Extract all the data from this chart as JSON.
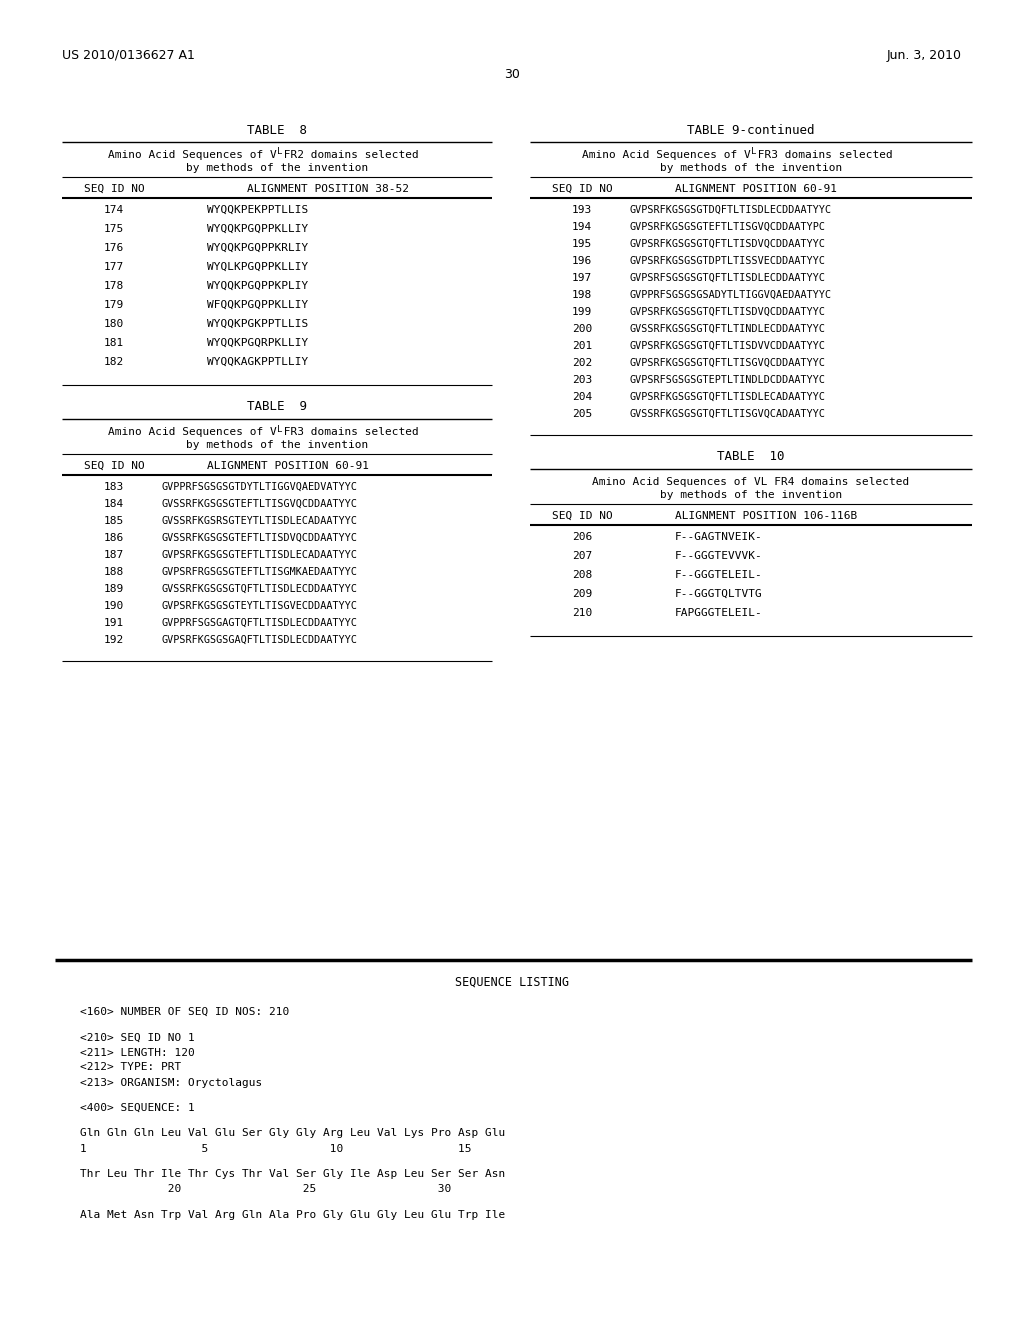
{
  "header_left": "US 2010/0136627 A1",
  "header_right": "Jun. 3, 2010",
  "page_number": "30",
  "background_color": "#ffffff",
  "text_color": "#000000",
  "table8_title": "TABLE  8",
  "table8_subtitle_line1": "Amino Acid Sequences of V",
  "table8_subtitle_sub": "L",
  "table8_subtitle_line1b": " FR2 domains selected",
  "table8_subtitle_line2": "by methods of the invention",
  "table8_col1": "SEQ ID NO",
  "table8_col2": "ALIGNMENT POSITION 38-52",
  "table8_rows": [
    [
      "174",
      "WYQQKPEKPPTLLIS"
    ],
    [
      "175",
      "WYQQKPGQPPKLLIY"
    ],
    [
      "176",
      "WYQQKPGQPPKRLIY"
    ],
    [
      "177",
      "WYQLKPGQPPKLLIY"
    ],
    [
      "178",
      "WYQQKPGQPPKPLIY"
    ],
    [
      "179",
      "WFQQKPGQPPKLLIY"
    ],
    [
      "180",
      "WYQQKPGKPPTLLIS"
    ],
    [
      "181",
      "WYQQKPGQRPKLLIY"
    ],
    [
      "182",
      "WYQQKAGKPPTLLIY"
    ]
  ],
  "table9_title": "TABLE  9",
  "table9_subtitle_line1": "Amino Acid Sequences of V",
  "table9_subtitle_sub": "L",
  "table9_subtitle_line1b": " FR3 domains selected",
  "table9_subtitle_line2": "by methods of the invention",
  "table9_col1": "SEQ ID NO",
  "table9_col2": "ALIGNMENT POSITION 60-91",
  "table9_rows_left": [
    [
      "183",
      "GVPPRFSGSGSGTDYTLTIGGVQAEDVATYYC"
    ],
    [
      "184",
      "GVSSRFKGSGSGTEFTLTISGVQCDDAATYYC"
    ],
    [
      "185",
      "GVSSRFKGSRSGTEYTLTISDLECADAATYYC"
    ],
    [
      "186",
      "GVSSRFKGSGSGTEFTLTISDVQCDDAATYYC"
    ],
    [
      "187",
      "GVPSRFKGSGSGTEFTLTISDLECADAATYYC"
    ],
    [
      "188",
      "GVPSRFRGSGSGTEFTLTISGMKAEDAATYYC"
    ],
    [
      "189",
      "GVSSRFKGSGSGTQFTLTISDLECDDAATYYC"
    ],
    [
      "190",
      "GVPSRFKGSGSGTEYTLTISGVECDDAATYYC"
    ],
    [
      "191",
      "GVPPRFSGSGAGTQFTLTISDLECDDAATYYC"
    ],
    [
      "192",
      "GVPSRFKGSGSGAQFTLTISDLECDDAATYYC"
    ]
  ],
  "table9cont_title": "TABLE 9-continued",
  "table9cont_subtitle_line1": "Amino Acid Sequences of V",
  "table9cont_subtitle_sub": "L",
  "table9cont_subtitle_line1b": " FR3 domains selected",
  "table9cont_subtitle_line2": "by methods of the invention",
  "table9cont_col1": "SEQ ID NO",
  "table9cont_col2": "ALIGNMENT POSITION 60-91",
  "table9cont_rows": [
    [
      "193",
      "GVPSRFKGSGSGTDQFTLTISDLECDDAATYYC"
    ],
    [
      "194",
      "GVPSRFKGSGSGTEFTLTISGVQCDDAATYPC"
    ],
    [
      "195",
      "GVPSRFKGSGSGTQFTLTISDVQCDDAATYYC"
    ],
    [
      "196",
      "GVPSRFKGSGSGTDPTLTISSVECDDAATYYC"
    ],
    [
      "197",
      "GVPSRFSGSGSGTQFTLTISDLECDDAATYYC"
    ],
    [
      "198",
      "GVPPRFSGSGSGSADYTLTIGGVQAEDAATYYC"
    ],
    [
      "199",
      "GVPSRFKGSGSGTQFTLTISDVQCDDAATYYC"
    ],
    [
      "200",
      "GVSSRFKGSGSGTQFTLTINDLECDDAATYYC"
    ],
    [
      "201",
      "GVPSRFKGSGSGTQFTLTISDVVCDDAATYYC"
    ],
    [
      "202",
      "GVPSRFKGSGSGTQFTLTISGVQCDDAATYYC"
    ],
    [
      "203",
      "GVPSRFSGSGSGTEPTLTINDLDCDDAATYYC"
    ],
    [
      "204",
      "GVPSRFKGSGSGTQFTLTISDLECADAATYYC"
    ],
    [
      "205",
      "GVSSRFKGSGSGTQFTLTISGVQCADAATYYC"
    ]
  ],
  "table10_title": "TABLE  10",
  "table10_subtitle_line1": "Amino Acid Sequences of VL FR4 domains selected",
  "table10_subtitle_line2": "by methods of the invention",
  "table10_col1": "SEQ ID NO",
  "table10_col2": "ALIGNMENT POSITION 106-116B",
  "table10_rows": [
    [
      "206",
      "F--GAGTNVEIK-"
    ],
    [
      "207",
      "F--GGGTEVVVK-"
    ],
    [
      "208",
      "F--GGGTELEIL-"
    ],
    [
      "209",
      "F--GGGTQLTVTG"
    ],
    [
      "210",
      "FAPGGGTELEIL-"
    ]
  ],
  "seq_listing_title": "SEQUENCE LISTING",
  "seq_listing_lines": [
    "<160> NUMBER OF SEQ ID NOS: 210",
    "",
    "<210> SEQ ID NO 1",
    "<211> LENGTH: 120",
    "<212> TYPE: PRT",
    "<213> ORGANISM: Oryctolagus",
    "",
    "<400> SEQUENCE: 1",
    "",
    "Gln Gln Gln Leu Val Glu Ser Gly Gly Arg Leu Val Lys Pro Asp Glu",
    "1                 5                  10                 15",
    "",
    "Thr Leu Thr Ile Thr Cys Thr Val Ser Gly Ile Asp Leu Ser Ser Asn",
    "             20                  25                  30",
    "",
    "Ala Met Asn Trp Val Arg Gln Ala Pro Gly Glu Gly Leu Glu Trp Ile"
  ]
}
